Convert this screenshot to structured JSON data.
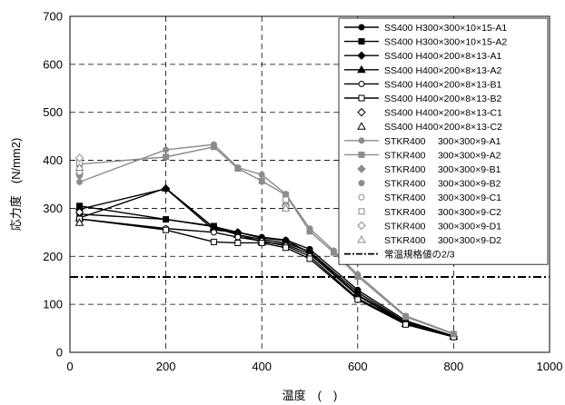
{
  "chart_data": {
    "type": "line",
    "xlabel": "温度　(　)",
    "ylabel": "応力度　(N/mm2)",
    "xlim": [
      0,
      1000
    ],
    "ylim": [
      0,
      700
    ],
    "x_ticks": [
      0,
      200,
      400,
      600,
      800,
      1000
    ],
    "y_ticks": [
      0,
      100,
      200,
      300,
      400,
      500,
      600,
      700
    ],
    "grid": "dashed",
    "legend_position": "top-right",
    "reference_line": {
      "name": "常温規格値の2/3",
      "y": 157,
      "style": "dash-dot"
    },
    "series": [
      {
        "name": "SS400 H300×300×10×15-A1",
        "color": "#000000",
        "marker": "circle-filled",
        "line": true,
        "x": [
          20,
          200,
          300,
          350,
          400,
          450,
          500,
          600,
          700,
          800
        ],
        "y": [
          288,
          277,
          262,
          250,
          240,
          234,
          215,
          130,
          66,
          34
        ]
      },
      {
        "name": "SS400 H300×300×10×15-A2",
        "color": "#000000",
        "marker": "square-filled",
        "line": true,
        "x": [
          20,
          200,
          300,
          350,
          400,
          450,
          500,
          600,
          700,
          800
        ],
        "y": [
          305,
          277,
          263,
          245,
          235,
          228,
          210,
          125,
          63,
          33
        ]
      },
      {
        "name": "SS400 H400×200×8×13-A1",
        "color": "#000000",
        "marker": "diamond-filled",
        "line": true,
        "x": [
          20,
          200,
          300,
          350,
          400,
          450,
          500,
          600,
          700,
          800
        ],
        "y": [
          298,
          341,
          255,
          250,
          238,
          233,
          208,
          120,
          62,
          33
        ]
      },
      {
        "name": "SS400 H400×200×8×13-A2",
        "color": "#000000",
        "marker": "triangle-filled",
        "line": true,
        "x": [
          20,
          200,
          300,
          350,
          400,
          450,
          500,
          600,
          700,
          800
        ],
        "y": [
          280,
          342,
          260,
          245,
          230,
          225,
          205,
          118,
          60,
          33
        ]
      },
      {
        "name": "SS400 H400×200×8×13-B1",
        "color": "#000000",
        "marker": "circle-open",
        "line": true,
        "x": [
          20,
          200,
          300,
          350,
          400,
          450,
          500,
          600,
          700,
          800
        ],
        "y": [
          278,
          258,
          250,
          240,
          232,
          222,
          200,
          112,
          60,
          33
        ]
      },
      {
        "name": "SS400 H400×200×8×13-B2",
        "color": "#000000",
        "marker": "square-open",
        "line": true,
        "x": [
          20,
          200,
          300,
          350,
          400,
          450,
          500,
          600,
          700,
          800
        ],
        "y": [
          278,
          255,
          230,
          228,
          228,
          218,
          195,
          110,
          58,
          32
        ]
      },
      {
        "name": "SS400 H400×200×8×13-C1",
        "color": "#000000",
        "marker": "diamond-open",
        "line": false,
        "x": [
          20
        ],
        "y": [
          292
        ]
      },
      {
        "name": "SS400 H400×200×8×13-C2",
        "color": "#000000",
        "marker": "triangle-open",
        "line": false,
        "x": [
          20
        ],
        "y": [
          270
        ]
      },
      {
        "name": "STKR400　 300×300×9-A1",
        "color": "#8c8c8c",
        "marker": "circle-filled",
        "line": true,
        "x": [
          20,
          200,
          300,
          350,
          400,
          450,
          500,
          550,
          600,
          700,
          800
        ],
        "y": [
          355,
          422,
          433,
          385,
          370,
          330,
          258,
          212,
          162,
          76,
          39
        ]
      },
      {
        "name": "STKR400　 300×300×9-A2",
        "color": "#8c8c8c",
        "marker": "square-filled",
        "line": true,
        "x": [
          20,
          200,
          300,
          350,
          400,
          450,
          500,
          550,
          600,
          700,
          800
        ],
        "y": [
          392,
          407,
          428,
          383,
          357,
          328,
          252,
          208,
          158,
          74,
          38
        ]
      },
      {
        "name": "STKR400　 300×300×9-B1",
        "color": "#8c8c8c",
        "marker": "diamond-filled",
        "line": false,
        "x": [
          20,
          450
        ],
        "y": [
          372,
          307
        ]
      },
      {
        "name": "STKR400　 300×300×9-B2",
        "color": "#8c8c8c",
        "marker": "circle-filled",
        "line": false,
        "x": [
          20,
          450
        ],
        "y": [
          368,
          312
        ]
      },
      {
        "name": "STKR400　 300×300×9-C1",
        "color": "#8c8c8c",
        "marker": "circle-open",
        "line": false,
        "x": [
          20,
          450
        ],
        "y": [
          375,
          306
        ]
      },
      {
        "name": "STKR400　 300×300×9-C2",
        "color": "#8c8c8c",
        "marker": "square-open",
        "line": false,
        "x": [
          20,
          450
        ],
        "y": [
          395,
          318
        ]
      },
      {
        "name": "STKR400　 300×300×9-D1",
        "color": "#8c8c8c",
        "marker": "diamond-open",
        "line": false,
        "x": [
          20,
          450
        ],
        "y": [
          405,
          304
        ]
      },
      {
        "name": "STKR400　 300×300×9-D2",
        "color": "#8c8c8c",
        "marker": "triangle-open",
        "line": false,
        "x": [
          20,
          450
        ],
        "y": [
          385,
          300
        ]
      }
    ]
  }
}
